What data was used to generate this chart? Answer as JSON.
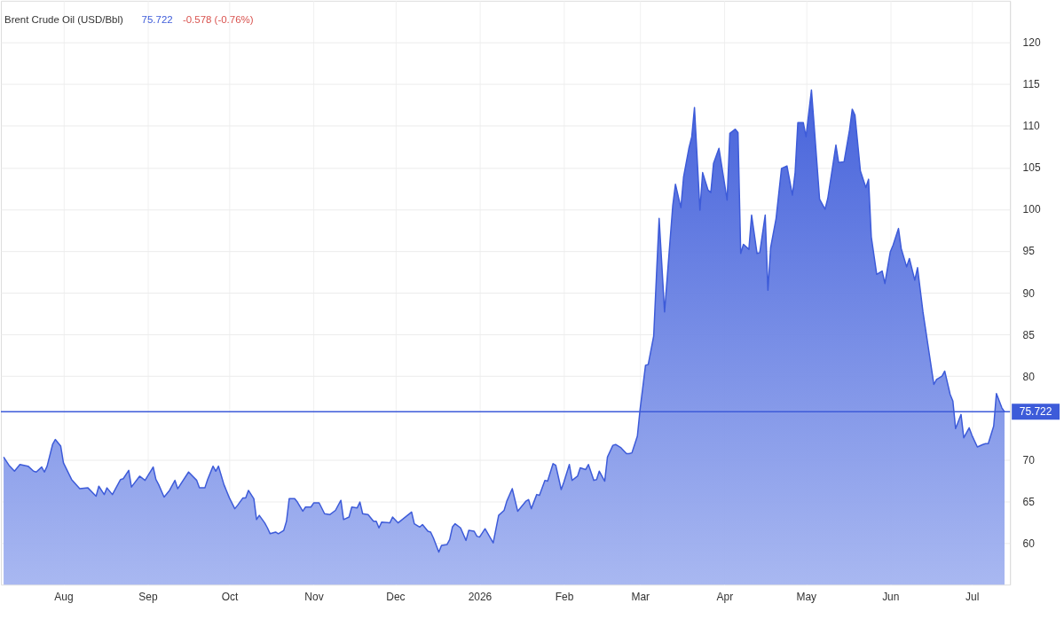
{
  "chart_data": {
    "type": "area",
    "title": "Brent Crude Oil (USD/Bbl)",
    "annotations": [
      "75.722",
      "-0.578 (-0.76%)"
    ],
    "x": [
      "2025-07-10",
      "2025-07-12",
      "2025-07-14",
      "2025-07-16",
      "2025-07-19",
      "2025-07-21",
      "2025-07-22",
      "2025-07-24",
      "2025-07-25",
      "2025-07-26",
      "2025-07-28",
      "2025-07-29",
      "2025-07-31",
      "2025-08-01",
      "2025-08-04",
      "2025-08-07",
      "2025-08-10",
      "2025-08-13",
      "2025-08-14",
      "2025-08-16",
      "2025-08-17",
      "2025-08-19",
      "2025-08-22",
      "2025-08-23",
      "2025-08-25",
      "2025-08-26",
      "2025-08-29",
      "2025-08-31",
      "2025-09-03",
      "2025-09-04",
      "2025-09-05",
      "2025-09-07",
      "2025-09-09",
      "2025-09-11",
      "2025-09-12",
      "2025-09-16",
      "2025-09-19",
      "2025-09-20",
      "2025-09-22",
      "2025-09-23",
      "2025-09-25",
      "2025-09-26",
      "2025-09-27",
      "2025-09-29",
      "2025-10-01",
      "2025-10-03",
      "2025-10-04",
      "2025-10-06",
      "2025-10-07",
      "2025-10-08",
      "2025-10-10",
      "2025-10-11",
      "2025-10-12",
      "2025-10-14",
      "2025-10-15",
      "2025-10-16",
      "2025-10-18",
      "2025-10-19",
      "2025-10-21",
      "2025-10-22",
      "2025-10-23",
      "2025-10-25",
      "2025-10-26",
      "2025-10-28",
      "2025-10-29",
      "2025-10-31",
      "2025-11-01",
      "2025-11-03",
      "2025-11-05",
      "2025-11-07",
      "2025-11-09",
      "2025-11-11",
      "2025-11-12",
      "2025-11-14",
      "2025-11-15",
      "2025-11-17",
      "2025-11-18",
      "2025-11-19",
      "2025-11-21",
      "2025-11-23",
      "2025-11-24",
      "2025-11-25",
      "2025-11-26",
      "2025-11-29",
      "2025-11-30",
      "2025-12-02",
      "2025-12-07",
      "2025-12-08",
      "2025-12-10",
      "2025-12-11",
      "2025-12-13",
      "2025-12-14",
      "2025-12-15",
      "2025-12-17",
      "2025-12-18",
      "2025-12-20",
      "2025-12-21",
      "2025-12-22",
      "2025-12-23",
      "2025-12-25",
      "2025-12-27",
      "2025-12-28",
      "2025-12-30",
      "2025-12-31",
      "2026-01-01",
      "2026-01-03",
      "2026-01-06",
      "2026-01-08",
      "2026-01-10",
      "2026-01-11",
      "2026-01-13",
      "2026-01-15",
      "2026-01-16",
      "2026-01-18",
      "2026-01-19",
      "2026-01-20",
      "2026-01-22",
      "2026-01-23",
      "2026-01-25",
      "2026-01-26",
      "2026-01-28",
      "2026-01-29",
      "2026-01-31",
      "2026-02-01",
      "2026-02-03",
      "2026-02-04",
      "2026-02-06",
      "2026-02-07",
      "2026-02-09",
      "2026-02-10",
      "2026-02-12",
      "2026-02-13",
      "2026-02-14",
      "2026-02-16",
      "2026-02-17",
      "2026-02-19",
      "2026-02-20",
      "2026-02-22",
      "2026-02-24",
      "2026-02-25",
      "2026-02-26",
      "2026-02-28",
      "2026-03-01",
      "2026-03-03",
      "2026-03-04",
      "2026-03-06",
      "2026-03-07",
      "2026-03-08",
      "2026-03-10",
      "2026-03-11",
      "2026-03-13",
      "2026-03-14",
      "2026-03-16",
      "2026-03-17",
      "2026-03-19",
      "2026-03-20",
      "2026-03-21",
      "2026-03-23",
      "2026-03-24",
      "2026-03-26",
      "2026-03-27",
      "2026-03-28",
      "2026-03-30",
      "2026-04-02",
      "2026-04-03",
      "2026-04-05",
      "2026-04-06",
      "2026-04-07",
      "2026-04-08",
      "2026-04-10",
      "2026-04-11",
      "2026-04-13",
      "2026-04-14",
      "2026-04-16",
      "2026-04-17",
      "2026-04-18",
      "2026-04-20",
      "2026-04-22",
      "2026-04-24",
      "2026-04-26",
      "2026-04-27",
      "2026-04-28",
      "2026-04-30",
      "2026-05-01",
      "2026-05-03",
      "2026-05-04",
      "2026-05-06",
      "2026-05-08",
      "2026-05-09",
      "2026-05-12",
      "2026-05-13",
      "2026-05-15",
      "2026-05-17",
      "2026-05-18",
      "2026-05-19",
      "2026-05-21",
      "2026-05-23",
      "2026-05-24",
      "2026-05-25",
      "2026-05-27",
      "2026-05-29",
      "2026-05-30",
      "2026-06-01",
      "2026-06-02",
      "2026-06-04",
      "2026-06-05",
      "2026-06-07",
      "2026-06-08",
      "2026-06-10",
      "2026-06-11",
      "2026-06-13",
      "2026-06-17",
      "2026-06-18",
      "2026-06-20",
      "2026-06-21",
      "2026-06-23",
      "2026-06-24",
      "2026-06-25",
      "2026-06-27",
      "2026-06-28",
      "2026-06-30",
      "2026-07-01",
      "2026-07-03",
      "2026-07-05",
      "2026-07-06",
      "2026-07-07",
      "2026-07-09",
      "2026-07-10",
      "2026-07-12",
      "2026-07-13"
    ],
    "series": [
      {
        "color": "#3d5bd9",
        "values": [
          70.3,
          69.3,
          68.6,
          69.4,
          69.2,
          68.6,
          68.5,
          69.1,
          68.5,
          69.2,
          71.8,
          72.4,
          71.6,
          69.6,
          67.6,
          66.5,
          66.6,
          65.6,
          66.8,
          65.8,
          66.6,
          65.8,
          67.6,
          67.7,
          68.7,
          66.7,
          68.0,
          67.5,
          69.1,
          67.6,
          67.0,
          65.5,
          66.3,
          67.5,
          66.5,
          68.5,
          67.5,
          66.6,
          66.6,
          67.6,
          69.2,
          68.6,
          69.2,
          67.0,
          65.4,
          64.1,
          64.5,
          65.4,
          65.4,
          66.3,
          65.3,
          62.8,
          63.3,
          62.4,
          61.8,
          61.1,
          61.3,
          61.1,
          61.5,
          62.6,
          65.3,
          65.3,
          64.9,
          63.8,
          64.3,
          64.3,
          64.8,
          64.8,
          63.5,
          63.4,
          63.9,
          65.1,
          62.8,
          63.1,
          64.3,
          64.2,
          64.9,
          63.5,
          63.4,
          62.6,
          62.6,
          61.8,
          62.5,
          62.4,
          63.1,
          62.4,
          63.7,
          62.3,
          61.9,
          62.2,
          61.4,
          61.3,
          60.6,
          58.9,
          59.7,
          59.8,
          60.4,
          61.9,
          62.3,
          61.8,
          60.3,
          61.5,
          61.4,
          60.8,
          60.7,
          61.7,
          60.0,
          63.3,
          63.9,
          65.0,
          66.5,
          63.8,
          64.2,
          65.0,
          65.2,
          64.1,
          65.8,
          65.7,
          67.5,
          67.4,
          69.5,
          69.3,
          66.4,
          67.3,
          69.4,
          67.5,
          68.0,
          69.0,
          68.8,
          69.4,
          67.5,
          67.6,
          68.6,
          67.4,
          70.3,
          71.7,
          71.8,
          71.4,
          70.7,
          70.7,
          70.8,
          72.8,
          76.0,
          81.3,
          81.4,
          84.8,
          91.9,
          98.9,
          87.7,
          91.9,
          100.4,
          103.0,
          100.2,
          103.9,
          107.4,
          108.7,
          112.2,
          99.9,
          104.4,
          102.3,
          102.0,
          105.5,
          107.3,
          101.1,
          109.1,
          109.6,
          109.2,
          94.7,
          95.8,
          95.2,
          99.3,
          94.7,
          94.8,
          99.3,
          90.3,
          95.4,
          98.9,
          104.9,
          105.2,
          101.7,
          104.4,
          110.4,
          110.4,
          108.7,
          114.3,
          110.0,
          101.2,
          100.0,
          101.3,
          107.7,
          105.6,
          105.7,
          109.5,
          112.0,
          111.3,
          104.6,
          102.6,
          103.6,
          96.7,
          92.2,
          92.6,
          91.1,
          94.9,
          95.7,
          97.7,
          95.3,
          93.1,
          94.1,
          91.5,
          93.0,
          87.7,
          79.0,
          79.6,
          80.0,
          80.6,
          77.8,
          77.0,
          73.7,
          75.4,
          72.6,
          73.8,
          72.9,
          71.5,
          71.8,
          71.9,
          71.9,
          74.0,
          77.9,
          76.2,
          75.722
        ]
      }
    ],
    "xlim": [
      "2025-07-09",
      "2026-07-15"
    ],
    "xticks": [
      {
        "value": "2025-08-01",
        "label": "Aug"
      },
      {
        "value": "2025-09-01",
        "label": "Sep"
      },
      {
        "value": "2025-10-01",
        "label": "Oct"
      },
      {
        "value": "2025-11-01",
        "label": "Nov"
      },
      {
        "value": "2025-12-01",
        "label": "Dec"
      },
      {
        "value": "2026-01-01",
        "label": "2026"
      },
      {
        "value": "2026-02-01",
        "label": "Feb"
      },
      {
        "value": "2026-03-01",
        "label": "Mar"
      },
      {
        "value": "2026-04-01",
        "label": "Apr"
      },
      {
        "value": "2026-05-01",
        "label": "May"
      },
      {
        "value": "2026-06-01",
        "label": "Jun"
      },
      {
        "value": "2026-07-01",
        "label": "Jul"
      }
    ],
    "ylim": [
      55,
      125
    ],
    "yticks": [
      60,
      65,
      70,
      80,
      85,
      90,
      95,
      100,
      105,
      110,
      115,
      120
    ],
    "ref_lines": [
      {
        "axis": "y",
        "value": 75.722,
        "label": "75.722",
        "color": "#3d5bd9"
      }
    ],
    "grid": true,
    "line_style": "solid",
    "marker": "none"
  }
}
